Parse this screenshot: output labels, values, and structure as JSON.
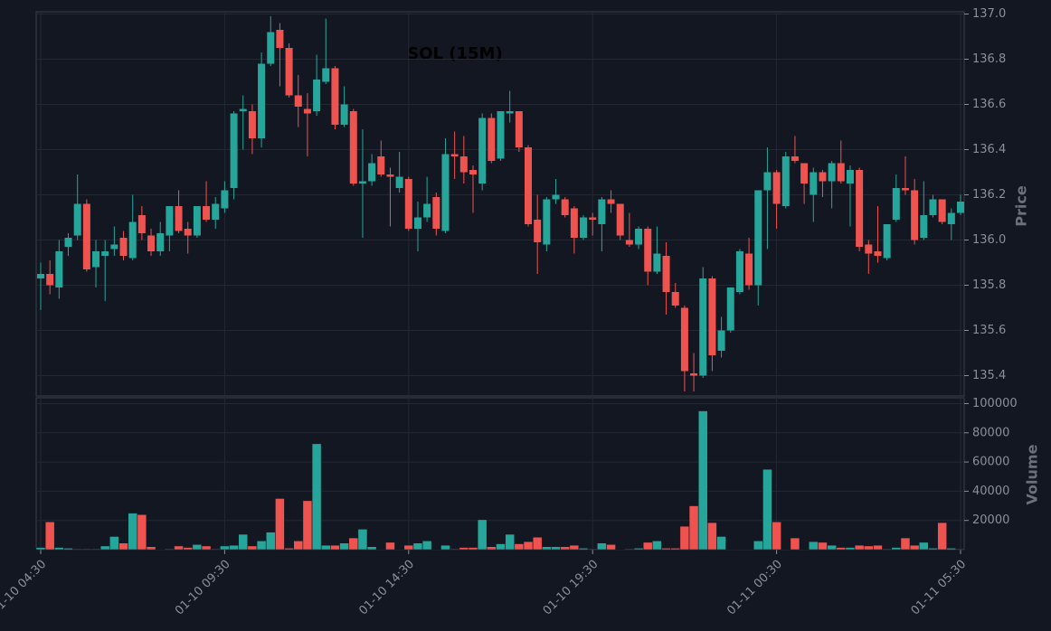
{
  "chart_data": {
    "type": "candlestick",
    "title": "SOL (15M)",
    "y_label": "Price",
    "y2_label": "Volume",
    "up_color": "#26a69a",
    "down_color": "#ef5350",
    "grid": true,
    "x": [
      "01-10 04:30",
      null,
      null,
      null,
      null,
      null,
      null,
      null,
      null,
      null,
      null,
      null,
      null,
      null,
      null,
      null,
      null,
      null,
      null,
      null,
      "01-10 09:30",
      null,
      null,
      null,
      null,
      null,
      null,
      null,
      null,
      null,
      null,
      null,
      null,
      null,
      null,
      null,
      null,
      null,
      null,
      null,
      "01-10 14:30",
      null,
      null,
      null,
      null,
      null,
      null,
      null,
      null,
      null,
      null,
      null,
      null,
      null,
      null,
      null,
      null,
      null,
      null,
      null,
      "01-10 19:30",
      null,
      null,
      null,
      null,
      null,
      null,
      null,
      null,
      null,
      null,
      null,
      null,
      null,
      null,
      null,
      null,
      null,
      null,
      null,
      "01-11 00:30",
      null,
      null,
      null,
      null,
      null,
      null,
      null,
      null,
      null,
      null,
      null,
      null,
      null,
      null,
      null,
      null,
      null,
      null,
      null,
      "01-11 05:30"
    ],
    "open": [
      135.83,
      135.85,
      135.79,
      135.97,
      136.02,
      136.16,
      135.88,
      135.93,
      135.96,
      136.01,
      135.92,
      136.11,
      136.02,
      135.95,
      136.02,
      136.15,
      136.05,
      136.02,
      136.15,
      136.09,
      136.14,
      136.23,
      136.57,
      136.57,
      136.45,
      136.78,
      136.93,
      136.85,
      136.64,
      136.58,
      136.57,
      136.7,
      136.76,
      136.51,
      136.57,
      136.25,
      136.26,
      136.37,
      136.29,
      136.23,
      136.27,
      136.05,
      136.1,
      136.19,
      136.04,
      136.38,
      136.37,
      136.31,
      136.25,
      136.54,
      136.36,
      136.56,
      136.57,
      136.41,
      136.09,
      135.98,
      136.18,
      136.18,
      136.14,
      136.01,
      136.1,
      136.07,
      136.18,
      136.16,
      136.0,
      135.98,
      136.05,
      135.86,
      135.93,
      135.77,
      135.7,
      135.41,
      135.4,
      135.83,
      135.51,
      135.6,
      135.77,
      135.94,
      135.8,
      136.22,
      136.3,
      136.15,
      136.37,
      136.34,
      136.2,
      136.3,
      136.26,
      136.34,
      136.25,
      136.31,
      135.98,
      135.95,
      135.92,
      136.09,
      136.23,
      136.22,
      136.01,
      136.11,
      136.18,
      136.07,
      136.12
    ],
    "high": [
      135.9,
      135.91,
      136.0,
      136.03,
      136.29,
      136.18,
      136.0,
      136.0,
      136.06,
      136.04,
      136.2,
      136.15,
      136.05,
      136.08,
      136.15,
      136.22,
      136.08,
      136.15,
      136.26,
      136.19,
      136.26,
      136.57,
      136.64,
      136.6,
      136.83,
      136.99,
      136.96,
      136.87,
      136.73,
      136.65,
      136.82,
      136.98,
      136.77,
      136.68,
      136.58,
      136.49,
      136.38,
      136.44,
      136.32,
      136.39,
      136.28,
      136.17,
      136.28,
      136.21,
      136.45,
      136.48,
      136.46,
      136.33,
      136.56,
      136.56,
      136.57,
      136.66,
      136.57,
      136.42,
      136.2,
      136.19,
      136.27,
      136.19,
      136.15,
      136.11,
      136.12,
      136.19,
      136.22,
      136.16,
      136.12,
      136.06,
      136.06,
      136.06,
      135.99,
      135.81,
      135.71,
      135.5,
      135.88,
      135.84,
      135.66,
      135.79,
      135.96,
      136.01,
      136.22,
      136.41,
      136.31,
      136.39,
      136.46,
      136.34,
      136.32,
      136.31,
      136.35,
      136.44,
      136.33,
      136.32,
      136.0,
      136.15,
      136.07,
      136.29,
      136.37,
      136.27,
      136.26,
      136.2,
      136.18,
      136.14,
      136.2
    ],
    "low": [
      135.69,
      135.76,
      135.74,
      135.93,
      136.0,
      135.86,
      135.79,
      135.73,
      135.93,
      135.91,
      135.91,
      136.0,
      135.93,
      135.93,
      135.95,
      136.03,
      135.94,
      136.01,
      136.08,
      136.05,
      136.12,
      136.18,
      136.4,
      136.38,
      136.41,
      136.77,
      136.68,
      136.63,
      136.5,
      136.37,
      136.55,
      136.69,
      136.49,
      136.5,
      136.24,
      136.01,
      136.24,
      136.28,
      136.06,
      136.21,
      136.04,
      135.95,
      136.08,
      136.02,
      136.03,
      136.27,
      136.25,
      136.12,
      136.22,
      136.34,
      136.35,
      136.52,
      136.39,
      136.06,
      135.85,
      135.95,
      136.16,
      136.1,
      135.94,
      136.0,
      136.02,
      135.95,
      136.12,
      136.0,
      135.97,
      135.96,
      135.8,
      135.85,
      135.67,
      135.7,
      135.33,
      135.33,
      135.39,
      135.42,
      135.48,
      135.59,
      135.76,
      135.78,
      135.71,
      135.96,
      136.05,
      136.14,
      136.34,
      136.16,
      136.08,
      136.19,
      136.14,
      136.25,
      136.06,
      135.95,
      135.85,
      135.9,
      135.91,
      136.08,
      136.2,
      135.98,
      136.0,
      136.1,
      136.07,
      136.0,
      136.11
    ],
    "close": [
      135.85,
      135.8,
      135.95,
      136.01,
      136.16,
      135.87,
      135.95,
      135.95,
      135.98,
      135.93,
      136.08,
      136.03,
      135.95,
      136.03,
      136.15,
      136.04,
      136.02,
      136.15,
      136.09,
      136.16,
      136.22,
      136.56,
      136.58,
      136.45,
      136.78,
      136.92,
      136.85,
      136.64,
      136.59,
      136.56,
      136.71,
      136.76,
      136.51,
      136.6,
      136.25,
      136.26,
      136.34,
      136.29,
      136.28,
      136.28,
      136.05,
      136.1,
      136.16,
      136.05,
      136.38,
      136.37,
      136.3,
      136.29,
      136.54,
      136.35,
      136.57,
      136.57,
      136.41,
      136.07,
      135.99,
      136.18,
      136.2,
      136.11,
      136.01,
      136.1,
      136.09,
      136.18,
      136.16,
      136.02,
      135.98,
      136.05,
      135.86,
      135.94,
      135.77,
      135.71,
      135.42,
      135.4,
      135.83,
      135.49,
      135.6,
      135.79,
      135.95,
      135.8,
      136.22,
      136.3,
      136.16,
      136.37,
      136.35,
      136.25,
      136.3,
      136.26,
      136.34,
      136.26,
      136.31,
      135.97,
      135.94,
      135.93,
      136.07,
      136.23,
      136.22,
      136.0,
      136.11,
      136.18,
      136.08,
      136.12,
      136.17
    ],
    "volume": [
      1500,
      19000,
      1500,
      1000,
      500,
      500,
      500,
      2500,
      9000,
      4500,
      25000,
      24000,
      2000,
      300,
      500,
      2500,
      1500,
      3500,
      2500,
      500,
      2500,
      3000,
      10500,
      2500,
      6000,
      12000,
      35000,
      1000,
      6000,
      33500,
      72500,
      3000,
      3000,
      4500,
      8000,
      14000,
      2000,
      300,
      5000,
      300,
      3000,
      4500,
      6000,
      300,
      3000,
      500,
      1500,
      1500,
      20500,
      2000,
      4000,
      10500,
      4000,
      5500,
      8500,
      2000,
      2000,
      2000,
      3000,
      1000,
      500,
      4500,
      3500,
      300,
      500,
      1000,
      5000,
      6000,
      1000,
      1000,
      16000,
      30000,
      95000,
      18500,
      9000,
      300,
      300,
      300,
      6000,
      55000,
      19000,
      300,
      8000,
      300,
      5500,
      5000,
      3000,
      1500,
      1500,
      3000,
      2500,
      3000,
      500,
      1500,
      8000,
      3000,
      5000,
      1000,
      18500,
      1000,
      500
    ],
    "ylim": [
      135.31,
      137.01
    ],
    "yticks": [
      {
        "value": 135.4,
        "label": "135.4"
      },
      {
        "value": 135.6,
        "label": "135.6"
      },
      {
        "value": 135.8,
        "label": "135.8"
      },
      {
        "value": 136.0,
        "label": "136.0"
      },
      {
        "value": 136.2,
        "label": "136.2"
      },
      {
        "value": 136.4,
        "label": "136.4"
      },
      {
        "value": 136.6,
        "label": "136.6"
      },
      {
        "value": 136.8,
        "label": "136.8"
      },
      {
        "value": 137.0,
        "label": "137.0"
      }
    ],
    "y2lim": [
      0,
      104000
    ],
    "y2ticks": [
      20000,
      40000,
      60000,
      80000,
      100000
    ]
  }
}
